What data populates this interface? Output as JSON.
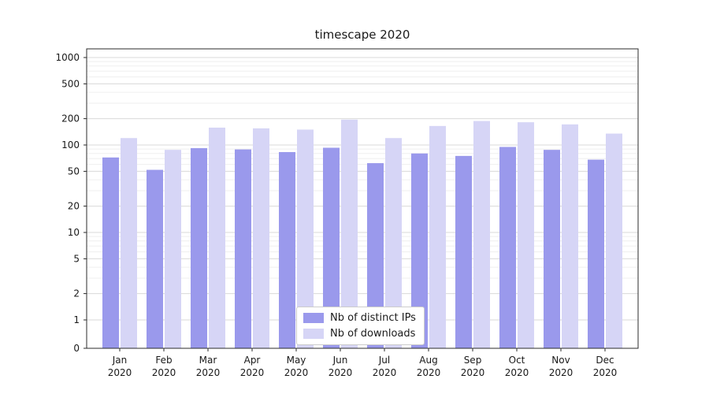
{
  "chart_data": {
    "type": "bar",
    "title": "timescape 2020",
    "xlabel": "",
    "ylabel": "",
    "yscale": "symlog",
    "grid": true,
    "legend_position": "lower center",
    "yticks": [
      0,
      1,
      2,
      5,
      10,
      20,
      50,
      100,
      200,
      500,
      1000
    ],
    "ylim": [
      0,
      1300
    ],
    "categories": [
      "Jan 2020",
      "Feb 2020",
      "Mar 2020",
      "Apr 2020",
      "May 2020",
      "Jun 2020",
      "Jul 2020",
      "Aug 2020",
      "Sep 2020",
      "Oct 2020",
      "Nov 2020",
      "Dec 2020"
    ],
    "series": [
      {
        "name": "Nb of distinct IPs",
        "color": "#9a99ec",
        "values": [
          72,
          52,
          92,
          89,
          83,
          93,
          62,
          80,
          75,
          95,
          88,
          68
        ]
      },
      {
        "name": "Nb of downloads",
        "color": "#d6d5f6",
        "values": [
          120,
          88,
          158,
          155,
          150,
          195,
          120,
          165,
          188,
          182,
          172,
          135
        ]
      }
    ]
  },
  "style": {
    "grid_major_color": "#d9d9d9",
    "grid_minor_color": "#efefef",
    "spine_color": "#2b2b2b",
    "text_color": "#1a1a1a"
  }
}
